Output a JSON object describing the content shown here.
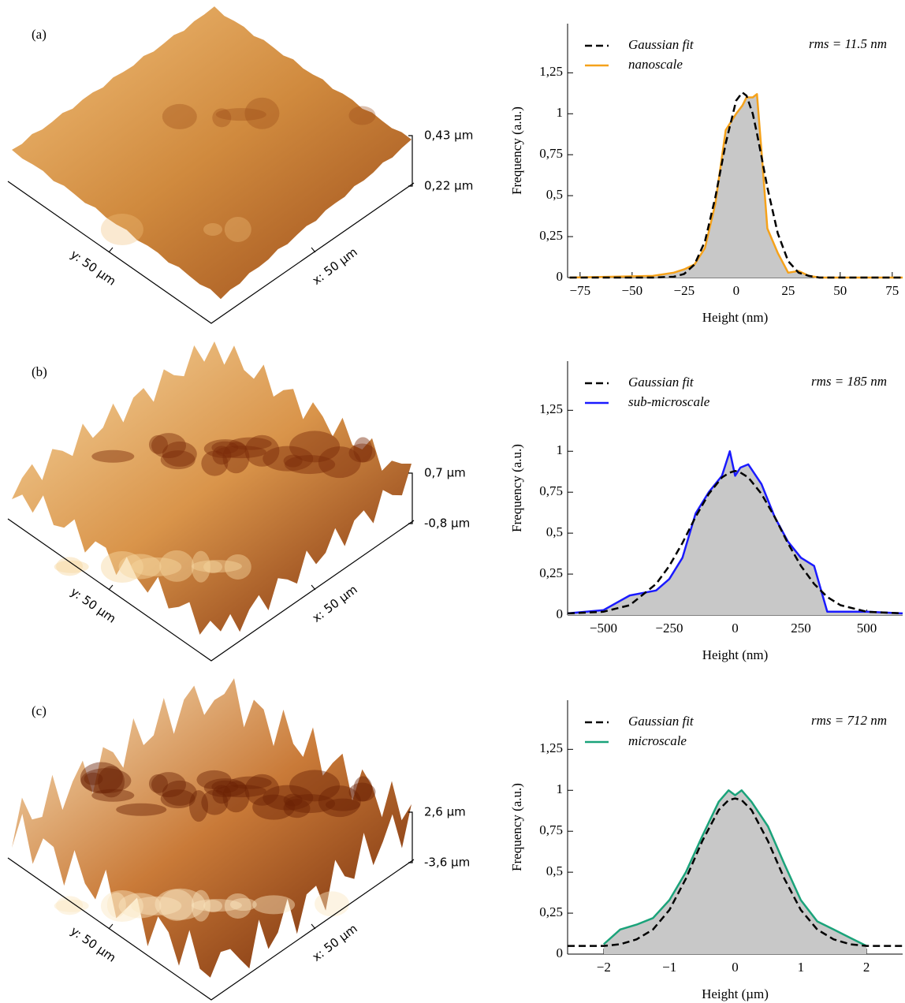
{
  "chart_data": [
    {
      "type": "line",
      "panel_label": "(a)",
      "surface": {
        "x_label": "x: 50 µm",
        "y_label": "y: 50 µm",
        "zticks": [
          "0,43 µm",
          "0,22 µm"
        ],
        "colors": [
          "#f2c07a",
          "#d08a3e",
          "#9a4a18"
        ]
      },
      "xlabel": "Height (nm)",
      "ylabel": "Frequency (a.u.)",
      "annotation": "rms = 11.5 nm",
      "x": [
        -80,
        -60,
        -40,
        -30,
        -25,
        -20,
        -15,
        -10,
        -5,
        0,
        3,
        5,
        8,
        10,
        12,
        15,
        20,
        25,
        30,
        35,
        40,
        60,
        80
      ],
      "series": [
        {
          "name": "Gaussian fit",
          "color": "#000000",
          "dashed": true,
          "values": [
            0,
            0,
            0,
            0.005,
            0.022,
            0.08,
            0.22,
            0.49,
            0.82,
            1.08,
            1.13,
            1.11,
            1.0,
            0.88,
            0.75,
            0.55,
            0.27,
            0.1,
            0.03,
            0.01,
            0,
            0,
            0
          ]
        },
        {
          "name": "nanoscale",
          "color": "#f5a21b",
          "values": [
            0,
            0.005,
            0.01,
            0.03,
            0.05,
            0.08,
            0.18,
            0.45,
            0.9,
            1.0,
            1.05,
            1.1,
            1.1,
            1.12,
            0.8,
            0.3,
            0.15,
            0.03,
            0.04,
            0.01,
            0,
            0,
            0
          ]
        }
      ],
      "area_color": "#c8c8c8",
      "xlim": [
        -81,
        80
      ],
      "ylim": [
        0,
        1.55
      ],
      "xticks": [
        {
          "value": -75,
          "label": "−75"
        },
        {
          "value": -50,
          "label": "−50"
        },
        {
          "value": -25,
          "label": "−25"
        },
        0,
        25,
        50,
        75
      ],
      "yticks": [
        0,
        {
          "value": 0.25,
          "label": "0,25"
        },
        {
          "value": 0.5,
          "label": "0,5"
        },
        {
          "value": 0.75,
          "label": "0,75"
        },
        1,
        {
          "value": 1.25,
          "label": "1,25"
        }
      ]
    },
    {
      "type": "line",
      "panel_label": "(b)",
      "surface": {
        "x_label": "x: 50 µm",
        "y_label": "y: 50 µm",
        "zticks": [
          "0,7 µm",
          "-0,8 µm"
        ],
        "colors": [
          "#f6d6a0",
          "#d9944a",
          "#7a2a08"
        ]
      },
      "xlabel": "Height (nm)",
      "ylabel": "Frequency (a.u.)",
      "annotation": "rms = 185 nm",
      "x": [
        -636,
        -500,
        -400,
        -300,
        -250,
        -200,
        -150,
        -100,
        -50,
        -20,
        0,
        20,
        50,
        100,
        150,
        200,
        250,
        300,
        350,
        400,
        500,
        636
      ],
      "series": [
        {
          "name": "Gaussian fit",
          "color": "#000000",
          "dashed": true,
          "values": [
            0.01,
            0.02,
            0.06,
            0.19,
            0.3,
            0.44,
            0.6,
            0.74,
            0.84,
            0.87,
            0.88,
            0.87,
            0.84,
            0.74,
            0.6,
            0.44,
            0.3,
            0.19,
            0.11,
            0.06,
            0.02,
            0.01
          ]
        },
        {
          "name": "sub-microscale",
          "color": "#1a1aff",
          "values": [
            0.01,
            0.03,
            0.12,
            0.15,
            0.22,
            0.35,
            0.62,
            0.75,
            0.85,
            1.0,
            0.85,
            0.9,
            0.92,
            0.8,
            0.6,
            0.45,
            0.35,
            0.3,
            0.02,
            0.02,
            0.02,
            0.01
          ]
        }
      ],
      "area_color": "#c8c8c8",
      "xlim": [
        -636,
        636
      ],
      "ylim": [
        0,
        1.55
      ],
      "xticks": [
        {
          "value": -500,
          "label": "−500"
        },
        {
          "value": -250,
          "label": "−250"
        },
        0,
        250,
        500
      ],
      "yticks": [
        0,
        {
          "value": 0.25,
          "label": "0,25"
        },
        {
          "value": 0.5,
          "label": "0,5"
        },
        {
          "value": 0.75,
          "label": "0,75"
        },
        1,
        {
          "value": 1.25,
          "label": "1,25"
        }
      ]
    },
    {
      "type": "line",
      "panel_label": "(c)",
      "surface": {
        "x_label": "x: 50 µm",
        "y_label": "y: 50 µm",
        "zticks": [
          "2,6 µm",
          "-3,6 µm"
        ],
        "colors": [
          "#fbe6c0",
          "#c97a38",
          "#6a2204"
        ]
      },
      "xlabel": "Height (µm)",
      "ylabel": "Frequency (a.u.)",
      "annotation": "rms = 712 nm",
      "x": [
        -2.55,
        -2,
        -1.75,
        -1.5,
        -1.25,
        -1,
        -0.75,
        -0.5,
        -0.25,
        -0.1,
        0,
        0.1,
        0.25,
        0.5,
        0.75,
        1,
        1.25,
        1.5,
        1.75,
        2,
        2.55
      ],
      "series": [
        {
          "name": "Gaussian fit",
          "color": "#000000",
          "dashed": true,
          "values": [
            0.05,
            0.05,
            0.06,
            0.09,
            0.15,
            0.27,
            0.46,
            0.69,
            0.88,
            0.94,
            0.95,
            0.94,
            0.88,
            0.69,
            0.46,
            0.27,
            0.15,
            0.09,
            0.06,
            0.05,
            0.05
          ]
        },
        {
          "name": "microscale",
          "color": "#1aa37a",
          "values": [
            null,
            0.06,
            0.15,
            0.18,
            0.22,
            0.33,
            0.5,
            0.72,
            0.93,
            1.0,
            0.97,
            1.0,
            0.93,
            0.78,
            0.55,
            0.33,
            0.2,
            0.15,
            0.1,
            0.05,
            null
          ]
        }
      ],
      "area_color": "#c8c8c8",
      "xlim": [
        -2.55,
        2.55
      ],
      "ylim": [
        0,
        1.55
      ],
      "xticks": [
        {
          "value": -2,
          "label": "−2"
        },
        {
          "value": -1,
          "label": "−1"
        },
        0,
        1,
        2
      ],
      "yticks": [
        0,
        {
          "value": 0.25,
          "label": "0,25"
        },
        {
          "value": 0.5,
          "label": "0,5"
        },
        {
          "value": 0.75,
          "label": "0,75"
        },
        1,
        {
          "value": 1.25,
          "label": "1,25"
        }
      ]
    }
  ]
}
